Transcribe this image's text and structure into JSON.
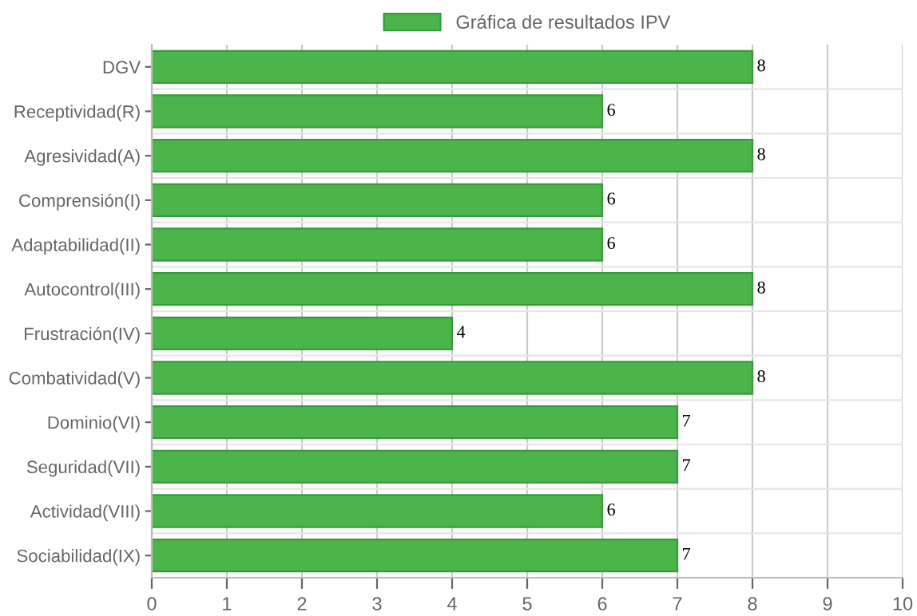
{
  "chart_data": {
    "type": "bar",
    "orientation": "horizontal",
    "categories": [
      "DGV",
      "Receptividad(R)",
      "Agresividad(A)",
      "Comprensión(I)",
      "Adaptabilidad(II)",
      "Autocontrol(III)",
      "Frustración(IV)",
      "Combatividad(V)",
      "Dominio(VI)",
      "Seguridad(VII)",
      "Actividad(VIII)",
      "Sociabilidad(IX)"
    ],
    "series": [
      {
        "name": "Gráfica de resultados IPV",
        "color": "#4bb54b",
        "values": [
          8,
          6,
          8,
          6,
          6,
          8,
          4,
          8,
          7,
          7,
          6,
          7
        ]
      }
    ],
    "xlim": [
      0,
      10
    ],
    "xticks": [
      0,
      1,
      2,
      3,
      4,
      5,
      6,
      7,
      8,
      9,
      10
    ],
    "grid": true,
    "legend": "top",
    "data_labels": true
  }
}
